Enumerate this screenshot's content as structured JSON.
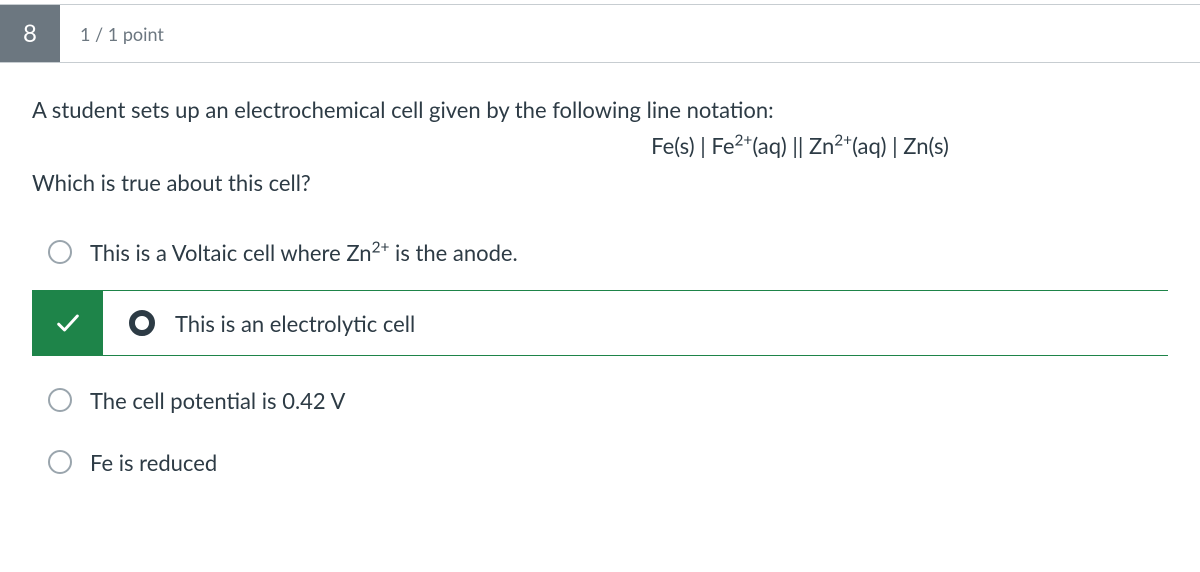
{
  "question": {
    "number": "8",
    "points": "1 / 1 point",
    "prompt_line1": "A student sets up an electrochemical cell given by the following line notation:",
    "formula_html": "Fe(s) | Fe<sup>2+</sup>(aq) || Zn<sup>2+</sup>(aq) | Zn(s)",
    "prompt_line2": "Which is true about this cell?",
    "answers": [
      {
        "html": "This is a Voltaic cell where Zn<sup>2+</sup> is the anode.",
        "selected": false,
        "correct": false
      },
      {
        "html": "This is an electrolytic cell",
        "selected": true,
        "correct": true
      },
      {
        "html": "The cell potential is 0.42 V",
        "selected": false,
        "correct": false
      },
      {
        "html": "Fe is reduced",
        "selected": false,
        "correct": false
      }
    ]
  },
  "colors": {
    "number_bg": "#6c7780",
    "correct_green": "#1e8449",
    "text": "#2d3b45",
    "muted": "#6c7780",
    "border": "#c7cdd1",
    "radio_border": "#9aa5ad"
  }
}
